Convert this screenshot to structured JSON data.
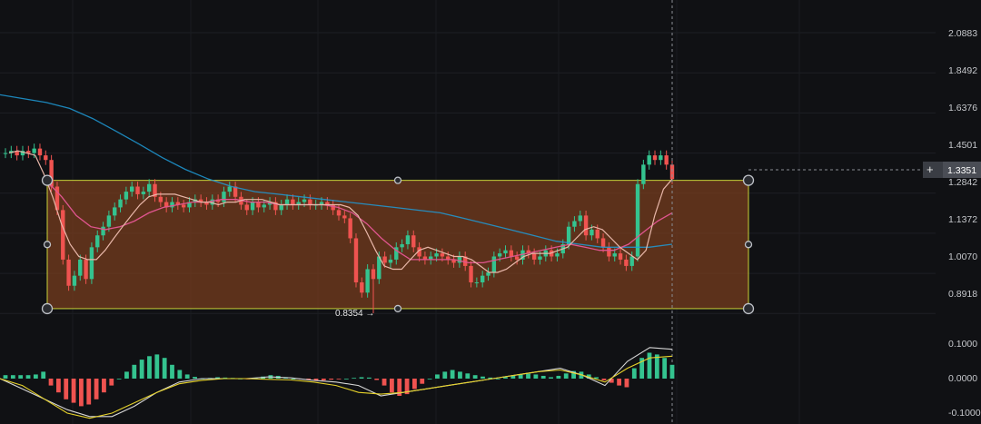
{
  "price_axis": {
    "ticks": [
      "2.0883",
      "1.8492",
      "1.6376",
      "1.4501",
      "1.2842",
      "1.1372",
      "1.0070",
      "0.8918"
    ],
    "current_price": "1.3351",
    "min_marker": "0.8354 →"
  },
  "macd_axis": {
    "ticks": [
      "0.1000",
      "0.0000",
      "-0.1000"
    ]
  },
  "colors": {
    "background": "#101114",
    "up": "#34c38f",
    "down": "#ef5350",
    "rect_fill": "#7a3e1f",
    "rect_border": "#c9d43a",
    "ma_short": "#e8b7a9",
    "ma_mid": "#e0558f",
    "ma_long": "#1e9bd7",
    "macd_line": "#d6d6d6",
    "signal_line": "#e6d22a"
  },
  "chart_data": {
    "type": "candlestick",
    "price_ticks": [
      2.0883,
      1.8492,
      1.6376,
      1.4501,
      1.2842,
      1.1372,
      1.007,
      0.8918
    ],
    "current_price": 1.3351,
    "marked_low": 0.8354,
    "highlight_range": [
      0.905,
      1.335
    ],
    "close_series": [
      1.45,
      1.46,
      1.44,
      1.46,
      1.45,
      1.47,
      1.44,
      1.42,
      1.31,
      1.22,
      1.05,
      0.97,
      1.0,
      1.05,
      0.99,
      1.09,
      1.13,
      1.16,
      1.2,
      1.23,
      1.26,
      1.29,
      1.31,
      1.28,
      1.29,
      1.32,
      1.27,
      1.25,
      1.23,
      1.25,
      1.24,
      1.23,
      1.25,
      1.26,
      1.25,
      1.24,
      1.26,
      1.25,
      1.29,
      1.31,
      1.27,
      1.24,
      1.22,
      1.25,
      1.23,
      1.24,
      1.25,
      1.22,
      1.24,
      1.26,
      1.24,
      1.25,
      1.26,
      1.24,
      1.24,
      1.25,
      1.24,
      1.22,
      1.2,
      1.19,
      1.12,
      0.98,
      0.95,
      1.02,
      0.99,
      1.06,
      1.04,
      1.05,
      1.09,
      1.1,
      1.13,
      1.09,
      1.06,
      1.05,
      1.06,
      1.07,
      1.06,
      1.05,
      1.04,
      1.06,
      1.03,
      0.98,
      0.98,
      1.0,
      1.01,
      1.06,
      1.07,
      1.08,
      1.06,
      1.05,
      1.08,
      1.07,
      1.05,
      1.06,
      1.08,
      1.06,
      1.07,
      1.1,
      1.16,
      1.18,
      1.2,
      1.13,
      1.15,
      1.12,
      1.09,
      1.06,
      1.07,
      1.05,
      1.03,
      1.06,
      1.32,
      1.4,
      1.44,
      1.42,
      1.44,
      1.4,
      1.34
    ],
    "ma_short": [
      1.45,
      1.46,
      1.45,
      1.44,
      1.36,
      1.27,
      1.17,
      1.1,
      1.06,
      1.05,
      1.05,
      1.08,
      1.12,
      1.16,
      1.2,
      1.24,
      1.27,
      1.28,
      1.28,
      1.28,
      1.27,
      1.26,
      1.25,
      1.25,
      1.24,
      1.25,
      1.25,
      1.26,
      1.26,
      1.26,
      1.25,
      1.24,
      1.24,
      1.24,
      1.24,
      1.24,
      1.24,
      1.24,
      1.24,
      1.23,
      1.2,
      1.14,
      1.08,
      1.03,
      1.02,
      1.02,
      1.05,
      1.08,
      1.09,
      1.08,
      1.07,
      1.06,
      1.06,
      1.05,
      1.03,
      1.01,
      1.01,
      1.02,
      1.04,
      1.06,
      1.07,
      1.07,
      1.07,
      1.08,
      1.09,
      1.12,
      1.15,
      1.16,
      1.15,
      1.12,
      1.09,
      1.07,
      1.05,
      1.08,
      1.2,
      1.3,
      1.34
    ],
    "ma_mid": [
      1.33,
      1.27,
      1.2,
      1.16,
      1.15,
      1.16,
      1.18,
      1.21,
      1.23,
      1.24,
      1.25,
      1.25,
      1.26,
      1.26,
      1.25,
      1.25,
      1.24,
      1.24,
      1.24,
      1.24,
      1.23,
      1.21,
      1.17,
      1.12,
      1.08,
      1.05,
      1.05,
      1.05,
      1.05,
      1.04,
      1.04,
      1.05,
      1.06,
      1.07,
      1.08,
      1.09,
      1.1,
      1.09,
      1.08,
      1.08,
      1.1,
      1.14,
      1.18,
      1.21
    ],
    "ma_long": [
      1.73,
      1.71,
      1.69,
      1.66,
      1.61,
      1.55,
      1.49,
      1.43,
      1.38,
      1.34,
      1.31,
      1.29,
      1.28,
      1.27,
      1.26,
      1.25,
      1.24,
      1.23,
      1.22,
      1.21,
      1.19,
      1.17,
      1.15,
      1.13,
      1.11,
      1.1,
      1.09,
      1.09,
      1.09,
      1.1
    ],
    "macd_ticks": [
      0.1,
      0.0,
      -0.1
    ],
    "macd_hist": [
      0.01,
      0.01,
      0.01,
      0.01,
      0.012,
      0.02,
      -0.02,
      -0.04,
      -0.06,
      -0.07,
      -0.08,
      -0.075,
      -0.06,
      -0.04,
      -0.02,
      0.0,
      0.02,
      0.04,
      0.055,
      0.065,
      0.07,
      0.06,
      0.04,
      0.025,
      0.012,
      0.005,
      0.0,
      0.002,
      0.004,
      0.003,
      0.002,
      0.0,
      -0.002,
      0.002,
      0.006,
      0.01,
      0.008,
      0.004,
      0.0,
      -0.002,
      -0.004,
      -0.006,
      -0.005,
      -0.003,
      -0.002,
      0.0,
      0.002,
      0.004,
      0.003,
      -0.004,
      -0.02,
      -0.04,
      -0.05,
      -0.045,
      -0.03,
      -0.015,
      0.0,
      0.012,
      0.02,
      0.025,
      0.02,
      0.015,
      0.01,
      0.006,
      0.003,
      0.0,
      0.004,
      0.008,
      0.012,
      0.014,
      0.012,
      0.008,
      0.004,
      0.008,
      0.015,
      0.022,
      0.02,
      0.012,
      0.004,
      -0.005,
      -0.012,
      -0.02,
      -0.025,
      0.03,
      0.06,
      0.075,
      0.07,
      0.06,
      0.04
    ],
    "macd_line": [
      0.0,
      -0.03,
      -0.06,
      -0.09,
      -0.11,
      -0.11,
      -0.08,
      -0.04,
      -0.01,
      0.0,
      0.0,
      0.0,
      0.005,
      0.002,
      -0.005,
      -0.01,
      -0.02,
      -0.05,
      -0.04,
      -0.03,
      -0.02,
      -0.01,
      0.0,
      0.01,
      0.02,
      0.03,
      0.01,
      -0.02,
      0.05,
      0.09,
      0.085
    ],
    "signal_line": [
      0.0,
      -0.02,
      -0.06,
      -0.1,
      -0.115,
      -0.1,
      -0.07,
      -0.04,
      -0.015,
      -0.005,
      0.0,
      0.0,
      -0.002,
      -0.004,
      -0.01,
      -0.02,
      -0.04,
      -0.045,
      -0.04,
      -0.03,
      -0.02,
      -0.01,
      0.0,
      0.01,
      0.02,
      0.025,
      0.01,
      -0.01,
      0.03,
      0.06,
      0.065
    ]
  }
}
